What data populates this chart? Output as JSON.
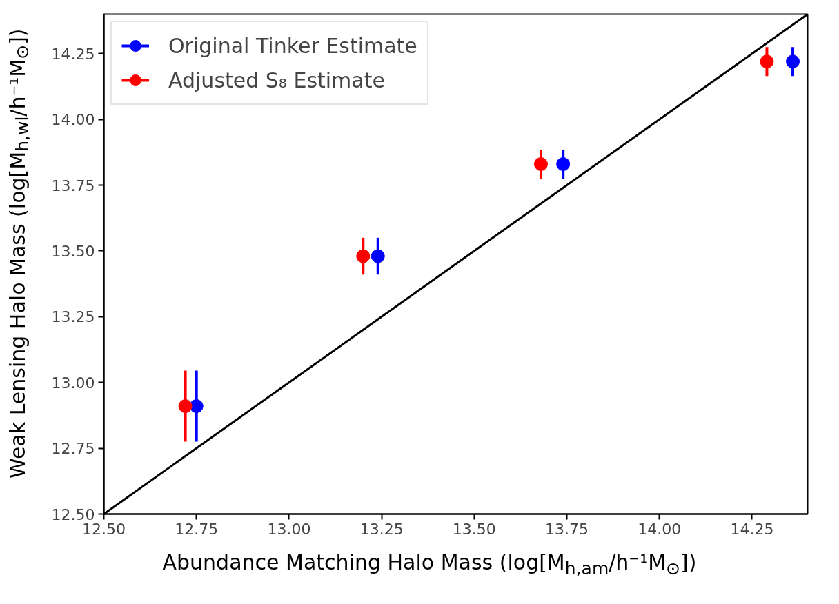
{
  "chart_data": {
    "type": "scatter",
    "xlabel": "Abundance Matching Halo Mass (log[M$_{h,am}$/h⁻¹M$_{⊙}$])",
    "ylabel": "Weak Lensing Halo Mass (log[M$_{h,wl}$/h⁻¹M$_{⊙}$])",
    "series": [
      {
        "name": "Original Tinker Estimate",
        "color": "#0000ff",
        "x": [
          12.75,
          13.24,
          13.74,
          14.36
        ],
        "values": [
          12.91,
          13.48,
          13.83,
          14.22
        ],
        "errors": [
          0.135,
          0.07,
          0.055,
          0.055
        ]
      },
      {
        "name": "Adjusted S₈ Estimate",
        "color": "#ff0000",
        "x": [
          12.72,
          13.2,
          13.68,
          14.29
        ],
        "values": [
          12.91,
          13.48,
          13.83,
          14.22
        ],
        "errors": [
          0.135,
          0.07,
          0.055,
          0.055
        ]
      },
      {
        "type": "line",
        "color": "#000000",
        "x": [
          12.5,
          14.4
        ],
        "values": [
          12.5,
          14.4
        ],
        "marker": "none"
      }
    ],
    "xlim": [
      12.5,
      14.4
    ],
    "ylim": [
      12.5,
      14.4
    ],
    "xticks": [
      {
        "value": 12.5,
        "label": "12.50"
      },
      {
        "value": 12.75,
        "label": "12.75"
      },
      {
        "value": 13.0,
        "label": "13.00"
      },
      {
        "value": 13.25,
        "label": "13.25"
      },
      {
        "value": 13.5,
        "label": "13.50"
      },
      {
        "value": 13.75,
        "label": "13.75"
      },
      {
        "value": 14.0,
        "label": "14.00"
      },
      {
        "value": 14.25,
        "label": "14.25"
      }
    ],
    "yticks": [
      {
        "value": 12.5,
        "label": "12.50"
      },
      {
        "value": 12.75,
        "label": "12.75"
      },
      {
        "value": 13.0,
        "label": "13.00"
      },
      {
        "value": 13.25,
        "label": "13.25"
      },
      {
        "value": 13.5,
        "label": "13.50"
      },
      {
        "value": 13.75,
        "label": "13.75"
      },
      {
        "value": 14.0,
        "label": "14.00"
      },
      {
        "value": 14.25,
        "label": "14.25"
      }
    ],
    "marker": "circle",
    "grid": false,
    "legend": "top left"
  }
}
